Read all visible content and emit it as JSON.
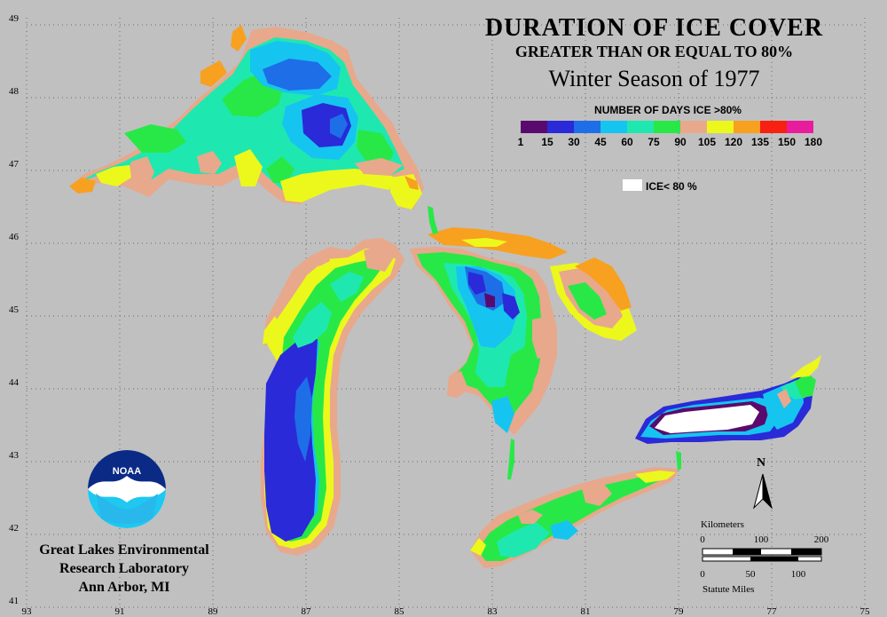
{
  "title": "DURATION OF ICE COVER",
  "subtitle": "GREATER THAN OR EQUAL TO 80%",
  "season": "Winter Season of 1977",
  "legend": {
    "title": "NUMBER OF DAYS ICE >80%",
    "ticks": [
      "1",
      "15",
      "30",
      "45",
      "60",
      "75",
      "90",
      "105",
      "120",
      "135",
      "150",
      "180"
    ],
    "colors": [
      "#5a0a6e",
      "#2a2ad8",
      "#1e6ee8",
      "#16c4f0",
      "#1ee8b0",
      "#28e848",
      "#e8a88c",
      "#ecf81c",
      "#f8a020",
      "#f82010",
      "#e81c9c"
    ],
    "no_ice_label": "ICE< 80 %",
    "no_ice_color": "#ffffff"
  },
  "grid": {
    "lat_labels": [
      "49",
      "48",
      "47",
      "46",
      "45",
      "44",
      "43",
      "42",
      "41"
    ],
    "lon_labels": [
      "93",
      "91",
      "89",
      "87",
      "85",
      "83",
      "81",
      "79",
      "77",
      "75"
    ]
  },
  "institution": {
    "logo_text": "NOAA",
    "line1": "Great Lakes Environmental",
    "line2": "Research Laboratory",
    "line3": "Ann Arbor, MI"
  },
  "north_arrow": "N",
  "scale_bar": {
    "km_label": "Kilometers",
    "km_ticks": [
      "0",
      "100",
      "200"
    ],
    "mi_ticks": [
      "0",
      "50",
      "100"
    ],
    "mi_label": "Statute Miles"
  },
  "lakes": [
    "Superior",
    "Michigan",
    "Huron",
    "Erie",
    "Ontario"
  ]
}
